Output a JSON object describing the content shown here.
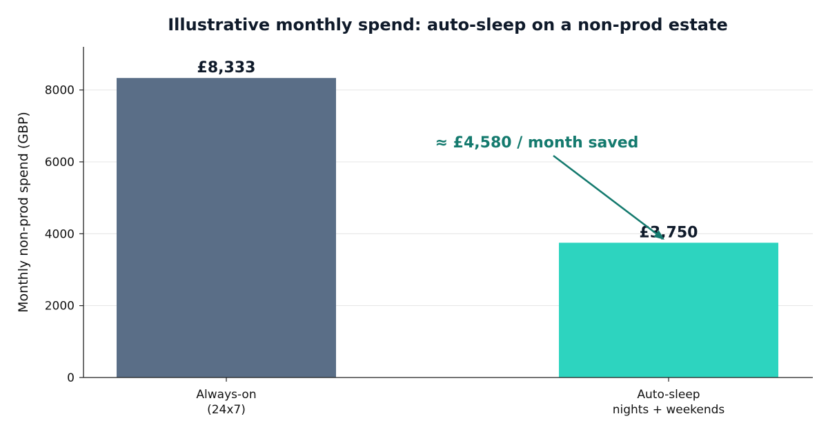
{
  "chart_data": {
    "type": "bar",
    "title": "Illustrative monthly spend: auto-sleep on a non-prod estate",
    "xlabel": "",
    "ylabel": "Monthly non-prod spend (GBP)",
    "ylim": [
      0,
      9200
    ],
    "yticks": [
      0,
      2000,
      4000,
      6000,
      8000
    ],
    "grid": "horizontal",
    "categories": [
      [
        "Always-on",
        "(24x7)"
      ],
      [
        "Auto-sleep",
        "nights + weekends"
      ]
    ],
    "values": [
      8333,
      3750
    ],
    "value_labels": [
      "£8,333",
      "£3,750"
    ],
    "colors": [
      "#5a6e87",
      "#2dd4bf"
    ],
    "annotation": {
      "text": "≈ £4,580 / month saved",
      "color": "#147a6e"
    }
  }
}
